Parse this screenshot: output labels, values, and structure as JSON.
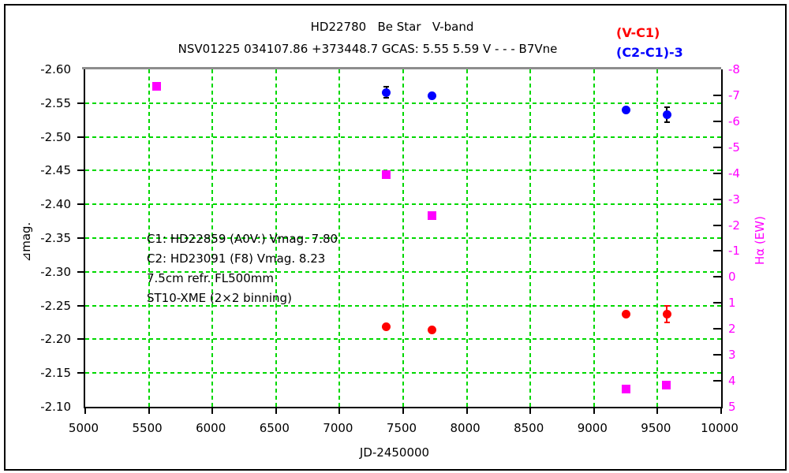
{
  "titles": {
    "line1": "HD22780   Be Star   V-band",
    "line2": "NSV01225 034107.86 +373448.7 GCAS: 5.55 5.59 V - - - B7Vne"
  },
  "legend": [
    {
      "label": "(V-C1)",
      "color": "#ff0000"
    },
    {
      "label": "(C2-C1)-3",
      "color": "#0000ff"
    }
  ],
  "annotation": {
    "lines": [
      "C1: HD22859 (A0V:) Vmag. 7.80",
      "C2: HD23091 (F8) Vmag. 8.23",
      "7.5cm refr. FL500mm",
      "ST10-XME (2×2 binning)"
    ]
  },
  "chart_data": {
    "type": "scatter",
    "title": "HD22780 Be Star V-band",
    "subtitle": "NSV01225 034107.86 +373448.7 GCAS: 5.55 5.59 V - - - B7Vne",
    "grid": {
      "show": true,
      "color": "#00d800",
      "style": "dashed"
    },
    "x_axis": {
      "label": "JD-2450000",
      "min": 5000,
      "max": 10000,
      "step": 500,
      "ticks": [
        {
          "v": 5000,
          "label": "5000"
        },
        {
          "v": 5500,
          "label": "5500"
        },
        {
          "v": 6000,
          "label": "6000"
        },
        {
          "v": 6500,
          "label": "6500"
        },
        {
          "v": 7000,
          "label": "7000"
        },
        {
          "v": 7500,
          "label": "7500"
        },
        {
          "v": 8000,
          "label": "8000"
        },
        {
          "v": 8500,
          "label": "8500"
        },
        {
          "v": 9000,
          "label": "9000"
        },
        {
          "v": 9500,
          "label": "9500"
        },
        {
          "v": 10000,
          "label": "10000"
        }
      ]
    },
    "y_axis_left": {
      "label": "⊿mag.",
      "top": -2.6,
      "bottom": -2.1,
      "step": 0.05,
      "inverted": true,
      "ticks": [
        {
          "v": -2.6,
          "label": "-2.60"
        },
        {
          "v": -2.55,
          "label": "-2.55"
        },
        {
          "v": -2.5,
          "label": "-2.50"
        },
        {
          "v": -2.45,
          "label": "-2.45"
        },
        {
          "v": -2.4,
          "label": "-2.40"
        },
        {
          "v": -2.35,
          "label": "-2.35"
        },
        {
          "v": -2.3,
          "label": "-2.30"
        },
        {
          "v": -2.25,
          "label": "-2.25"
        },
        {
          "v": -2.2,
          "label": "-2.20"
        },
        {
          "v": -2.15,
          "label": "-2.15"
        },
        {
          "v": -2.1,
          "label": "-2.10"
        }
      ]
    },
    "y_axis_right": {
      "label": "Hα (EW)",
      "color": "#ff00ff",
      "top": -8,
      "bottom": 5,
      "step": 1,
      "inverted": true,
      "ticks": [
        {
          "v": -8,
          "label": "-8"
        },
        {
          "v": -7,
          "label": "-7"
        },
        {
          "v": -6,
          "label": "-6"
        },
        {
          "v": -5,
          "label": "-5"
        },
        {
          "v": -4,
          "label": "-4"
        },
        {
          "v": -3,
          "label": "-3"
        },
        {
          "v": -2,
          "label": "-2"
        },
        {
          "v": -1,
          "label": "-1"
        },
        {
          "v": 0,
          "label": "0"
        },
        {
          "v": 1,
          "label": "1"
        },
        {
          "v": 2,
          "label": "2"
        },
        {
          "v": 3,
          "label": "3"
        },
        {
          "v": 4,
          "label": "4"
        },
        {
          "v": 5,
          "label": "5"
        }
      ]
    },
    "series": [
      {
        "id": "v-c1",
        "name": "(V-C1)",
        "marker": "circle",
        "color": "#ff0000",
        "error_color": "#ff0000",
        "axis": "left",
        "points": [
          {
            "x": 7367,
            "y": -2.219
          },
          {
            "x": 7729,
            "y": -2.214
          },
          {
            "x": 9250,
            "y": -2.237
          },
          {
            "x": 9573,
            "y": -2.237,
            "err": 0.012
          }
        ]
      },
      {
        "id": "c2-c1",
        "name": "(C2-C1)-3",
        "marker": "circle",
        "color": "#0000ff",
        "error_color": "#000000",
        "axis": "left",
        "points": [
          {
            "x": 7367,
            "y": -2.566,
            "err": 0.008
          },
          {
            "x": 7729,
            "y": -2.561
          },
          {
            "x": 9250,
            "y": -2.54
          },
          {
            "x": 9573,
            "y": -2.533,
            "err": 0.011
          }
        ]
      },
      {
        "id": "halpha-ew",
        "name": "Hα (EW)",
        "marker": "square",
        "color": "#ff00ff",
        "axis": "right",
        "points": [
          {
            "x": 5561,
            "y": -7.35
          },
          {
            "x": 7368,
            "y": -3.93
          },
          {
            "x": 7726,
            "y": -2.36
          },
          {
            "x": 9250,
            "y": 4.32
          },
          {
            "x": 9571,
            "y": 4.17
          }
        ]
      }
    ]
  }
}
